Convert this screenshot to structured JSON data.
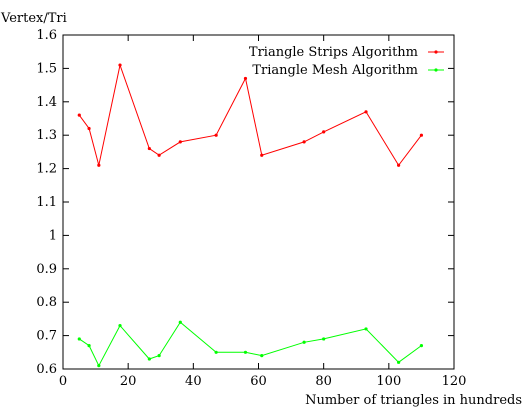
{
  "chart_data": {
    "type": "line",
    "title": "",
    "ylabel": "Vertex/Tri",
    "xlabel": "Number of triangles in hundreds",
    "xlim": [
      0,
      120
    ],
    "ylim": [
      0.6,
      1.6
    ],
    "xticks": [
      "0",
      "20",
      "40",
      "60",
      "80",
      "100",
      "120"
    ],
    "yticks": [
      "0.6",
      "0.7",
      "0.8",
      "0.9",
      "1",
      "1.1",
      "1.2",
      "1.3",
      "1.4",
      "1.5",
      "1.6"
    ],
    "grid": false,
    "legend_position": "top-right",
    "series": [
      {
        "name": "Triangle Strips Algorithm",
        "color": "#ff0000",
        "x": [
          5,
          8,
          11,
          17.5,
          26.5,
          29.5,
          36,
          47,
          56,
          61,
          74,
          80,
          93,
          103,
          110
        ],
        "y": [
          1.36,
          1.32,
          1.21,
          1.51,
          1.26,
          1.24,
          1.28,
          1.3,
          1.47,
          1.24,
          1.28,
          1.31,
          1.37,
          1.21,
          1.3
        ]
      },
      {
        "name": "Triangle Mesh Algorithm",
        "color": "#00ff00",
        "x": [
          5,
          8,
          11,
          17.5,
          26.5,
          29.5,
          36,
          47,
          56,
          61,
          74,
          80,
          93,
          103,
          110
        ],
        "y": [
          0.69,
          0.67,
          0.61,
          0.73,
          0.63,
          0.64,
          0.74,
          0.65,
          0.65,
          0.64,
          0.68,
          0.69,
          0.72,
          0.62,
          0.67
        ]
      }
    ]
  }
}
